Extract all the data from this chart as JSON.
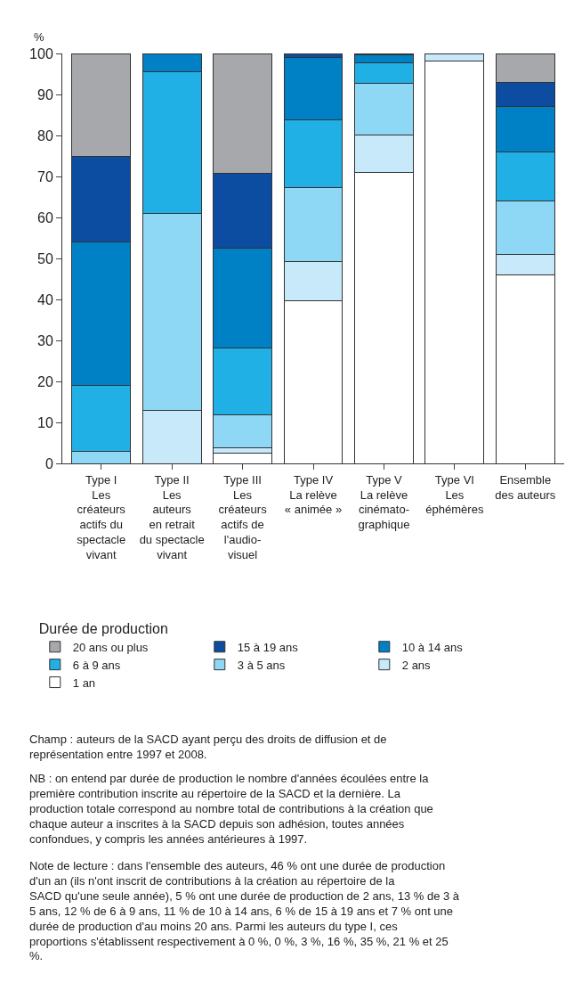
{
  "chart_data": {
    "type": "bar",
    "stacked": true,
    "ylabel": "%",
    "legend_title": "Durée de production",
    "legend": "bottom",
    "categories": [
      "Type I\nLes\ncréateurs\nactifs du\nspectacle\nvivant",
      "Type II\nLes\nauteurs\nen retrait\ndu spectacle\nvivant",
      "Type III\nLes\ncréateurs\nactifs de\nl'audio-\nvisuel",
      "Type IV\nLa relève\n« animée »",
      "Type V\nLa relève\ncinémato-\ngraphique",
      "Type VI\nLes\néphémères",
      "Ensemble\ndes auteurs"
    ],
    "ylim": [
      0,
      100
    ],
    "yticks": [
      0,
      10,
      20,
      30,
      40,
      50,
      60,
      70,
      80,
      90,
      100
    ],
    "series": [
      {
        "name": "1 an",
        "color": "#ffffff",
        "values": [
          0,
          0,
          2.4,
          39.6,
          71.0,
          98.1,
          46
        ]
      },
      {
        "name": "2 ans",
        "color": "#c7e9f9",
        "values": [
          0,
          13,
          1.4,
          9.7,
          9.2,
          1.9,
          5
        ]
      },
      {
        "name": "3 à 5 ans",
        "color": "#8fd8f5",
        "values": [
          3,
          48,
          8.1,
          17.9,
          12.5,
          0,
          13
        ]
      },
      {
        "name": "6 à 9 ans",
        "color": "#21b0e6",
        "values": [
          16,
          34.5,
          16.2,
          16.5,
          5.1,
          0,
          12
        ]
      },
      {
        "name": "10 à 14 ans",
        "color": "#0081c6",
        "values": [
          35,
          4.5,
          24.5,
          15.3,
          1.9,
          0,
          11
        ]
      },
      {
        "name": "15 à 19 ans",
        "color": "#0c4da2",
        "values": [
          21,
          0,
          18.1,
          1.0,
          0.3,
          0,
          6
        ]
      },
      {
        "name": "20 ans ou plus",
        "color": "#a7a8ab",
        "values": [
          25,
          0,
          29.3,
          0,
          0,
          0,
          7
        ]
      }
    ],
    "annotations": [
      "Champ : auteurs de la SACD ayant perçu des droits de diffusion et de représentation entre 1997 et 2008.",
      "NB : on entend par durée de production le nombre d'années écoulées entre la première contribution inscrite au répertoire de la SACD et la dernière. La production totale correspond au nombre total de contributions à la création que chaque auteur a inscrites à la SACD depuis son adhésion, toutes années confondues, y compris les années antérieures à 1997.",
      "Note de lecture : dans l'ensemble des auteurs, 46 % ont une durée de production d'un an (ils n'ont inscrit de contributions à la création au répertoire de la SACD qu'une seule année), 5 % ont une durée de production de 2 ans, 13 % de 3 à 5 ans, 12 % de 6 à 9 ans, 11 % de 10 à 14 ans, 6 % de 15 à 19 ans et 7 % ont une durée de production d'au moins 20 ans. Parmi les auteurs du type I, ces proportions s'établissent respectivement à 0 %, 0 %, 3 %, 16 %, 35 %, 21 % et 25 %."
    ]
  }
}
